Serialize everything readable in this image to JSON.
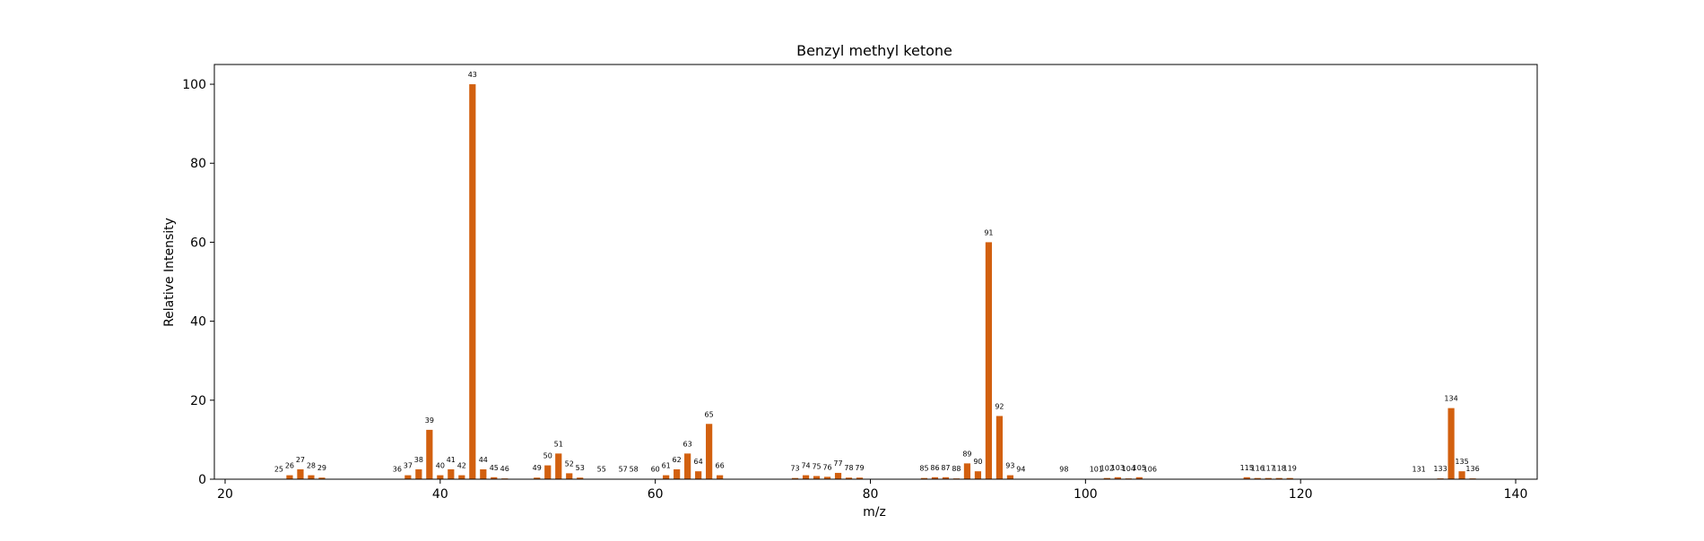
{
  "chart_data": {
    "type": "bar",
    "title": "Benzyl methyl ketone",
    "xlabel": "m/z",
    "ylabel": "Relative Intensity",
    "xlim": [
      19,
      142
    ],
    "ylim": [
      0,
      105
    ],
    "xticks": [
      20,
      40,
      60,
      80,
      100,
      120,
      140
    ],
    "yticks": [
      0,
      20,
      40,
      60,
      80,
      100
    ],
    "grid": false,
    "bar_color": "#D2600F",
    "x": [
      25,
      26,
      27,
      28,
      29,
      36,
      37,
      38,
      39,
      40,
      41,
      42,
      43,
      44,
      45,
      46,
      49,
      50,
      51,
      52,
      53,
      55,
      57,
      58,
      60,
      61,
      62,
      63,
      64,
      65,
      66,
      73,
      74,
      75,
      76,
      77,
      78,
      79,
      85,
      86,
      87,
      88,
      89,
      90,
      91,
      92,
      93,
      94,
      98,
      101,
      102,
      103,
      104,
      105,
      106,
      115,
      116,
      117,
      118,
      119,
      131,
      133,
      134,
      135,
      136
    ],
    "values": [
      0.1,
      1.0,
      2.5,
      1.0,
      0.4,
      0.1,
      1.0,
      2.5,
      12.5,
      1.0,
      2.5,
      1.0,
      100,
      2.5,
      0.5,
      0.2,
      0.4,
      3.5,
      6.5,
      1.5,
      0.4,
      0.1,
      0.1,
      0.1,
      0.1,
      1.0,
      2.5,
      6.5,
      2.0,
      14.0,
      1.0,
      0.3,
      1.0,
      0.8,
      0.6,
      1.6,
      0.4,
      0.4,
      0.3,
      0.5,
      0.5,
      0.2,
      4.0,
      2.0,
      60,
      16,
      1.0,
      0.1,
      0.1,
      0.1,
      0.3,
      0.5,
      0.2,
      0.5,
      0.1,
      0.5,
      0.3,
      0.3,
      0.3,
      0.3,
      0.1,
      0.2,
      18,
      2.0,
      0.2
    ]
  }
}
